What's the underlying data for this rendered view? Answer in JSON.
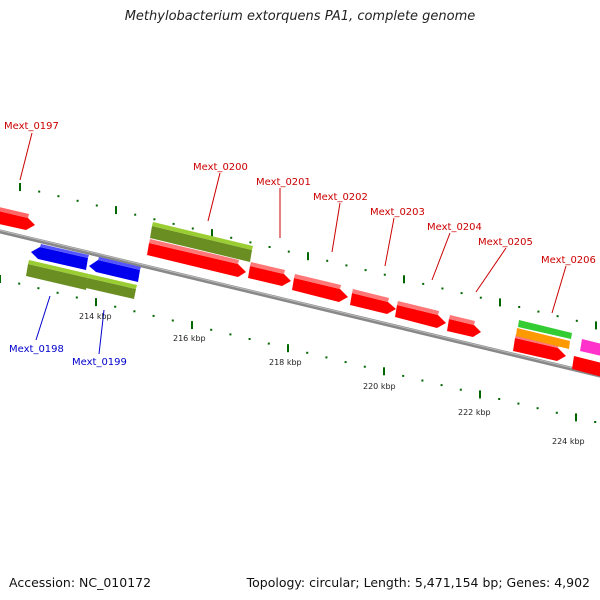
{
  "title": "Methylobacterium extorquens PA1, complete genome",
  "footer": {
    "accession": "Accession: NC_010172",
    "summary": "Topology: circular; Length: 5,471,154 bp; Genes: 4,902"
  },
  "colors": {
    "forward_cds": "#ff0000",
    "reverse_cds": "#0000ee",
    "gene_feature": "#6b8e23",
    "rrna_feature": "#ff9900",
    "trna_feature": "#33cc33",
    "other_feature": "#ff33cc",
    "backbone": "#888888",
    "tick": "#006600",
    "label_forward": "#cc0000",
    "label_reverse": "#0000cc"
  },
  "kbp_ticks": [
    "214 kbp",
    "216 kbp",
    "218 kbp",
    "220 kbp",
    "222 kbp",
    "224 kbp"
  ],
  "gene_labels": [
    {
      "name": "Mext_0197",
      "strand": "forward"
    },
    {
      "name": "Mext_0198",
      "strand": "reverse"
    },
    {
      "name": "Mext_0199",
      "strand": "reverse"
    },
    {
      "name": "Mext_0200",
      "strand": "forward"
    },
    {
      "name": "Mext_0201",
      "strand": "forward"
    },
    {
      "name": "Mext_0202",
      "strand": "forward"
    },
    {
      "name": "Mext_0203",
      "strand": "forward"
    },
    {
      "name": "Mext_0204",
      "strand": "forward"
    },
    {
      "name": "Mext_0205",
      "strand": "forward"
    },
    {
      "name": "Mext_0206",
      "strand": "forward"
    }
  ]
}
